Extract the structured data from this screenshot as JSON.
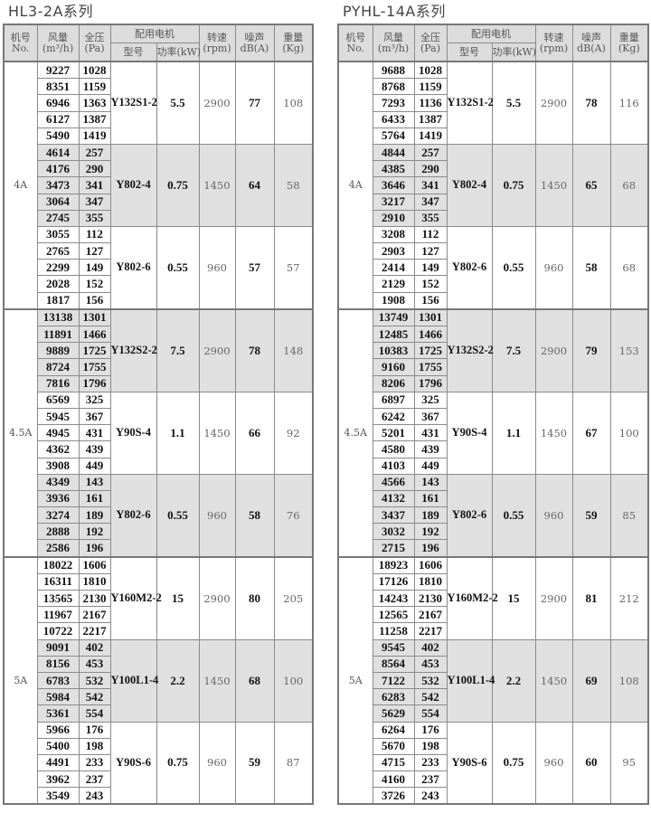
{
  "headers": {
    "no": "机号",
    "no_en": "No.",
    "flow": "风量",
    "flow_unit": "(m³/h)",
    "pressure": "全压",
    "pressure_unit": "(Pa)",
    "motor_group": "配用电机",
    "motor_model": "型号",
    "motor_power": "功率(kW)",
    "speed": "转速",
    "speed_unit": "(rpm)",
    "noise": "噪声",
    "noise_unit": "dB(A)",
    "weight": "重量",
    "weight_unit": "(Kg)"
  },
  "colors": {
    "header_bg": "#dcdcdc",
    "shaded_group_bg": "#e0e0e0",
    "border": "#8a8a8a"
  },
  "tables": [
    {
      "title": "HL3-2A系列",
      "sections": [
        {
          "no": "4A",
          "groups": [
            {
              "motor": "Y132S1-2",
              "power": "5.5",
              "rpm": "2900",
              "noise": "77",
              "weight": "108",
              "rows": [
                [
                  "9227",
                  "1028"
                ],
                [
                  "8351",
                  "1159"
                ],
                [
                  "6946",
                  "1363"
                ],
                [
                  "6127",
                  "1387"
                ],
                [
                  "5490",
                  "1419"
                ]
              ]
            },
            {
              "motor": "Y802-4",
              "power": "0.75",
              "rpm": "1450",
              "noise": "64",
              "weight": "58",
              "rows": [
                [
                  "4614",
                  "257"
                ],
                [
                  "4176",
                  "290"
                ],
                [
                  "3473",
                  "341"
                ],
                [
                  "3064",
                  "347"
                ],
                [
                  "2745",
                  "355"
                ]
              ]
            },
            {
              "motor": "Y802-6",
              "power": "0.55",
              "rpm": "960",
              "noise": "57",
              "weight": "57",
              "rows": [
                [
                  "3055",
                  "112"
                ],
                [
                  "2765",
                  "127"
                ],
                [
                  "2299",
                  "149"
                ],
                [
                  "2028",
                  "152"
                ],
                [
                  "1817",
                  "156"
                ]
              ]
            }
          ]
        },
        {
          "no": "4.5A",
          "groups": [
            {
              "motor": "Y132S2-2",
              "power": "7.5",
              "rpm": "2900",
              "noise": "78",
              "weight": "148",
              "rows": [
                [
                  "13138",
                  "1301"
                ],
                [
                  "11891",
                  "1466"
                ],
                [
                  "9889",
                  "1725"
                ],
                [
                  "8724",
                  "1755"
                ],
                [
                  "7816",
                  "1796"
                ]
              ]
            },
            {
              "motor": "Y90S-4",
              "power": "1.1",
              "rpm": "1450",
              "noise": "66",
              "weight": "92",
              "rows": [
                [
                  "6569",
                  "325"
                ],
                [
                  "5945",
                  "367"
                ],
                [
                  "4945",
                  "431"
                ],
                [
                  "4362",
                  "439"
                ],
                [
                  "3908",
                  "449"
                ]
              ]
            },
            {
              "motor": "Y802-6",
              "power": "0.55",
              "rpm": "960",
              "noise": "58",
              "weight": "76",
              "rows": [
                [
                  "4349",
                  "143"
                ],
                [
                  "3936",
                  "161"
                ],
                [
                  "3274",
                  "189"
                ],
                [
                  "2888",
                  "192"
                ],
                [
                  "2586",
                  "196"
                ]
              ]
            }
          ]
        },
        {
          "no": "5A",
          "groups": [
            {
              "motor": "Y160M2-2",
              "power": "15",
              "rpm": "2900",
              "noise": "80",
              "weight": "205",
              "rows": [
                [
                  "18022",
                  "1606"
                ],
                [
                  "16311",
                  "1810"
                ],
                [
                  "13565",
                  "2130"
                ],
                [
                  "11967",
                  "2167"
                ],
                [
                  "10722",
                  "2217"
                ]
              ]
            },
            {
              "motor": "Y100L1-4",
              "power": "2.2",
              "rpm": "1450",
              "noise": "68",
              "weight": "100",
              "rows": [
                [
                  "9091",
                  "402"
                ],
                [
                  "8156",
                  "453"
                ],
                [
                  "6783",
                  "532"
                ],
                [
                  "5984",
                  "542"
                ],
                [
                  "5361",
                  "554"
                ]
              ]
            },
            {
              "motor": "Y90S-6",
              "power": "0.75",
              "rpm": "960",
              "noise": "59",
              "weight": "87",
              "rows": [
                [
                  "5966",
                  "176"
                ],
                [
                  "5400",
                  "198"
                ],
                [
                  "4491",
                  "233"
                ],
                [
                  "3962",
                  "237"
                ],
                [
                  "3549",
                  "243"
                ]
              ]
            }
          ]
        }
      ]
    },
    {
      "title": "PYHL-14A系列",
      "sections": [
        {
          "no": "4A",
          "groups": [
            {
              "motor": "Y132S1-2",
              "power": "5.5",
              "rpm": "2900",
              "noise": "78",
              "weight": "116",
              "rows": [
                [
                  "9688",
                  "1028"
                ],
                [
                  "8768",
                  "1159"
                ],
                [
                  "7293",
                  "1136"
                ],
                [
                  "6433",
                  "1387"
                ],
                [
                  "5764",
                  "1419"
                ]
              ]
            },
            {
              "motor": "Y802-4",
              "power": "0.75",
              "rpm": "1450",
              "noise": "65",
              "weight": "68",
              "rows": [
                [
                  "4844",
                  "257"
                ],
                [
                  "4385",
                  "290"
                ],
                [
                  "3646",
                  "341"
                ],
                [
                  "3217",
                  "347"
                ],
                [
                  "2910",
                  "355"
                ]
              ]
            },
            {
              "motor": "Y802-6",
              "power": "0.55",
              "rpm": "960",
              "noise": "58",
              "weight": "68",
              "rows": [
                [
                  "3208",
                  "112"
                ],
                [
                  "2903",
                  "127"
                ],
                [
                  "2414",
                  "149"
                ],
                [
                  "2129",
                  "152"
                ],
                [
                  "1908",
                  "156"
                ]
              ]
            }
          ]
        },
        {
          "no": "4.5A",
          "groups": [
            {
              "motor": "Y132S2-2",
              "power": "7.5",
              "rpm": "2900",
              "noise": "79",
              "weight": "153",
              "rows": [
                [
                  "13749",
                  "1301"
                ],
                [
                  "12485",
                  "1466"
                ],
                [
                  "10383",
                  "1725"
                ],
                [
                  "9160",
                  "1755"
                ],
                [
                  "8206",
                  "1796"
                ]
              ]
            },
            {
              "motor": "Y90S-4",
              "power": "1.1",
              "rpm": "1450",
              "noise": "67",
              "weight": "100",
              "rows": [
                [
                  "6897",
                  "325"
                ],
                [
                  "6242",
                  "367"
                ],
                [
                  "5201",
                  "431"
                ],
                [
                  "4580",
                  "439"
                ],
                [
                  "4103",
                  "449"
                ]
              ]
            },
            {
              "motor": "Y802-6",
              "power": "0.55",
              "rpm": "960",
              "noise": "59",
              "weight": "85",
              "rows": [
                [
                  "4566",
                  "143"
                ],
                [
                  "4132",
                  "161"
                ],
                [
                  "3437",
                  "189"
                ],
                [
                  "3032",
                  "192"
                ],
                [
                  "2715",
                  "196"
                ]
              ]
            }
          ]
        },
        {
          "no": "5A",
          "groups": [
            {
              "motor": "Y160M2-2",
              "power": "15",
              "rpm": "2900",
              "noise": "81",
              "weight": "212",
              "rows": [
                [
                  "18923",
                  "1606"
                ],
                [
                  "17126",
                  "1810"
                ],
                [
                  "14243",
                  "2130"
                ],
                [
                  "12565",
                  "2167"
                ],
                [
                  "11258",
                  "2217"
                ]
              ]
            },
            {
              "motor": "Y100L1-4",
              "power": "2.2",
              "rpm": "1450",
              "noise": "69",
              "weight": "108",
              "rows": [
                [
                  "9545",
                  "402"
                ],
                [
                  "8564",
                  "453"
                ],
                [
                  "7122",
                  "532"
                ],
                [
                  "6283",
                  "542"
                ],
                [
                  "5629",
                  "554"
                ]
              ]
            },
            {
              "motor": "Y90S-6",
              "power": "0.75",
              "rpm": "960",
              "noise": "60",
              "weight": "95",
              "rows": [
                [
                  "6264",
                  "176"
                ],
                [
                  "5670",
                  "198"
                ],
                [
                  "4715",
                  "233"
                ],
                [
                  "4160",
                  "237"
                ],
                [
                  "3726",
                  "243"
                ]
              ]
            }
          ]
        }
      ]
    }
  ]
}
